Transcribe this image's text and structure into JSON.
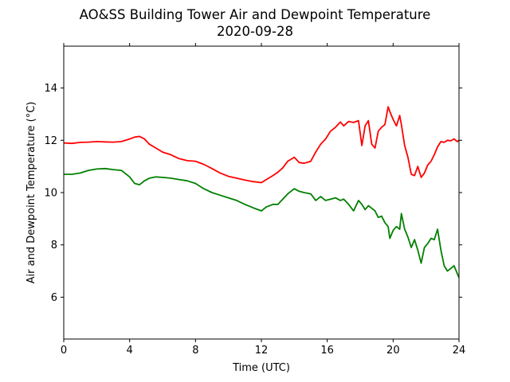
{
  "chart_data": {
    "type": "line",
    "title": "AO&SS Building Tower Air and Dewpoint Temperature",
    "subtitle": "2020-09-28",
    "xlabel": "Time (UTC)",
    "ylabel": "Air and Dewpoint Temperature (°C)",
    "xlim": [
      0,
      24
    ],
    "ylim": [
      4.4,
      15.6
    ],
    "xticks": [
      0,
      4,
      8,
      12,
      16,
      20,
      24
    ],
    "yticks": [
      6,
      8,
      10,
      12,
      14
    ],
    "grid": false,
    "legend": "none",
    "series": [
      {
        "color": "#ff0000",
        "x": [
          0,
          0.5,
          1,
          1.5,
          2,
          2.5,
          3,
          3.5,
          4,
          4.3,
          4.6,
          4.9,
          5.2,
          5.6,
          6,
          6.5,
          7,
          7.5,
          8,
          8.5,
          9,
          9.5,
          10,
          10.5,
          11,
          11.5,
          12,
          12.3,
          12.7,
          13,
          13.3,
          13.6,
          14,
          14.3,
          14.6,
          15,
          15.3,
          15.6,
          15.9,
          16.2,
          16.5,
          16.8,
          17,
          17.3,
          17.6,
          17.9,
          18.1,
          18.3,
          18.5,
          18.7,
          18.9,
          19.1,
          19.3,
          19.5,
          19.7,
          19.8,
          20,
          20.2,
          20.4,
          20.5,
          20.7,
          20.9,
          21.1,
          21.3,
          21.5,
          21.7,
          21.9,
          22.1,
          22.3,
          22.5,
          22.7,
          22.9,
          23.1,
          23.3,
          23.5,
          23.7,
          23.9,
          24
        ],
        "y": [
          11.9,
          11.88,
          11.92,
          11.93,
          11.95,
          11.94,
          11.93,
          11.95,
          12.05,
          12.12,
          12.15,
          12.05,
          11.85,
          11.7,
          11.55,
          11.45,
          11.3,
          11.22,
          11.2,
          11.08,
          10.92,
          10.75,
          10.62,
          10.55,
          10.48,
          10.42,
          10.38,
          10.5,
          10.65,
          10.78,
          10.95,
          11.2,
          11.35,
          11.15,
          11.12,
          11.2,
          11.55,
          11.85,
          12.05,
          12.35,
          12.5,
          12.7,
          12.55,
          12.72,
          12.68,
          12.75,
          11.8,
          12.55,
          12.75,
          11.85,
          11.7,
          12.35,
          12.5,
          12.6,
          13.28,
          13.1,
          12.8,
          12.55,
          12.95,
          12.6,
          11.8,
          11.35,
          10.7,
          10.65,
          11.0,
          10.58,
          10.75,
          11.05,
          11.2,
          11.45,
          11.75,
          11.95,
          11.92,
          12.0,
          11.98,
          12.05,
          11.95,
          12.0
        ]
      },
      {
        "color": "#008000",
        "x": [
          0,
          0.5,
          1,
          1.5,
          2,
          2.5,
          3,
          3.5,
          4,
          4.3,
          4.6,
          4.9,
          5.2,
          5.6,
          6,
          6.5,
          7,
          7.5,
          8,
          8.5,
          9,
          9.5,
          10,
          10.5,
          11,
          11.5,
          12,
          12.3,
          12.7,
          13,
          13.3,
          13.6,
          14,
          14.3,
          14.6,
          15,
          15.3,
          15.6,
          15.9,
          16.2,
          16.5,
          16.8,
          17,
          17.3,
          17.6,
          17.9,
          18.1,
          18.3,
          18.5,
          18.7,
          18.9,
          19.1,
          19.3,
          19.5,
          19.7,
          19.8,
          20,
          20.2,
          20.4,
          20.5,
          20.7,
          20.9,
          21.1,
          21.3,
          21.5,
          21.7,
          21.9,
          22.1,
          22.3,
          22.5,
          22.7,
          22.9,
          23.1,
          23.3,
          23.5,
          23.7,
          23.9,
          24
        ],
        "y": [
          10.7,
          10.7,
          10.75,
          10.85,
          10.9,
          10.92,
          10.88,
          10.85,
          10.6,
          10.35,
          10.3,
          10.45,
          10.55,
          10.6,
          10.58,
          10.55,
          10.5,
          10.45,
          10.35,
          10.15,
          10.0,
          9.9,
          9.8,
          9.7,
          9.55,
          9.42,
          9.3,
          9.45,
          9.55,
          9.55,
          9.75,
          9.95,
          10.15,
          10.05,
          10.0,
          9.95,
          9.7,
          9.85,
          9.7,
          9.75,
          9.8,
          9.7,
          9.75,
          9.55,
          9.3,
          9.7,
          9.55,
          9.35,
          9.5,
          9.4,
          9.3,
          9.05,
          9.1,
          8.85,
          8.7,
          8.25,
          8.55,
          8.7,
          8.6,
          9.2,
          8.6,
          8.3,
          7.9,
          8.2,
          7.8,
          7.3,
          7.9,
          8.05,
          8.25,
          8.2,
          8.6,
          7.8,
          7.2,
          7.0,
          7.1,
          7.2,
          6.9,
          6.75
        ]
      }
    ]
  }
}
